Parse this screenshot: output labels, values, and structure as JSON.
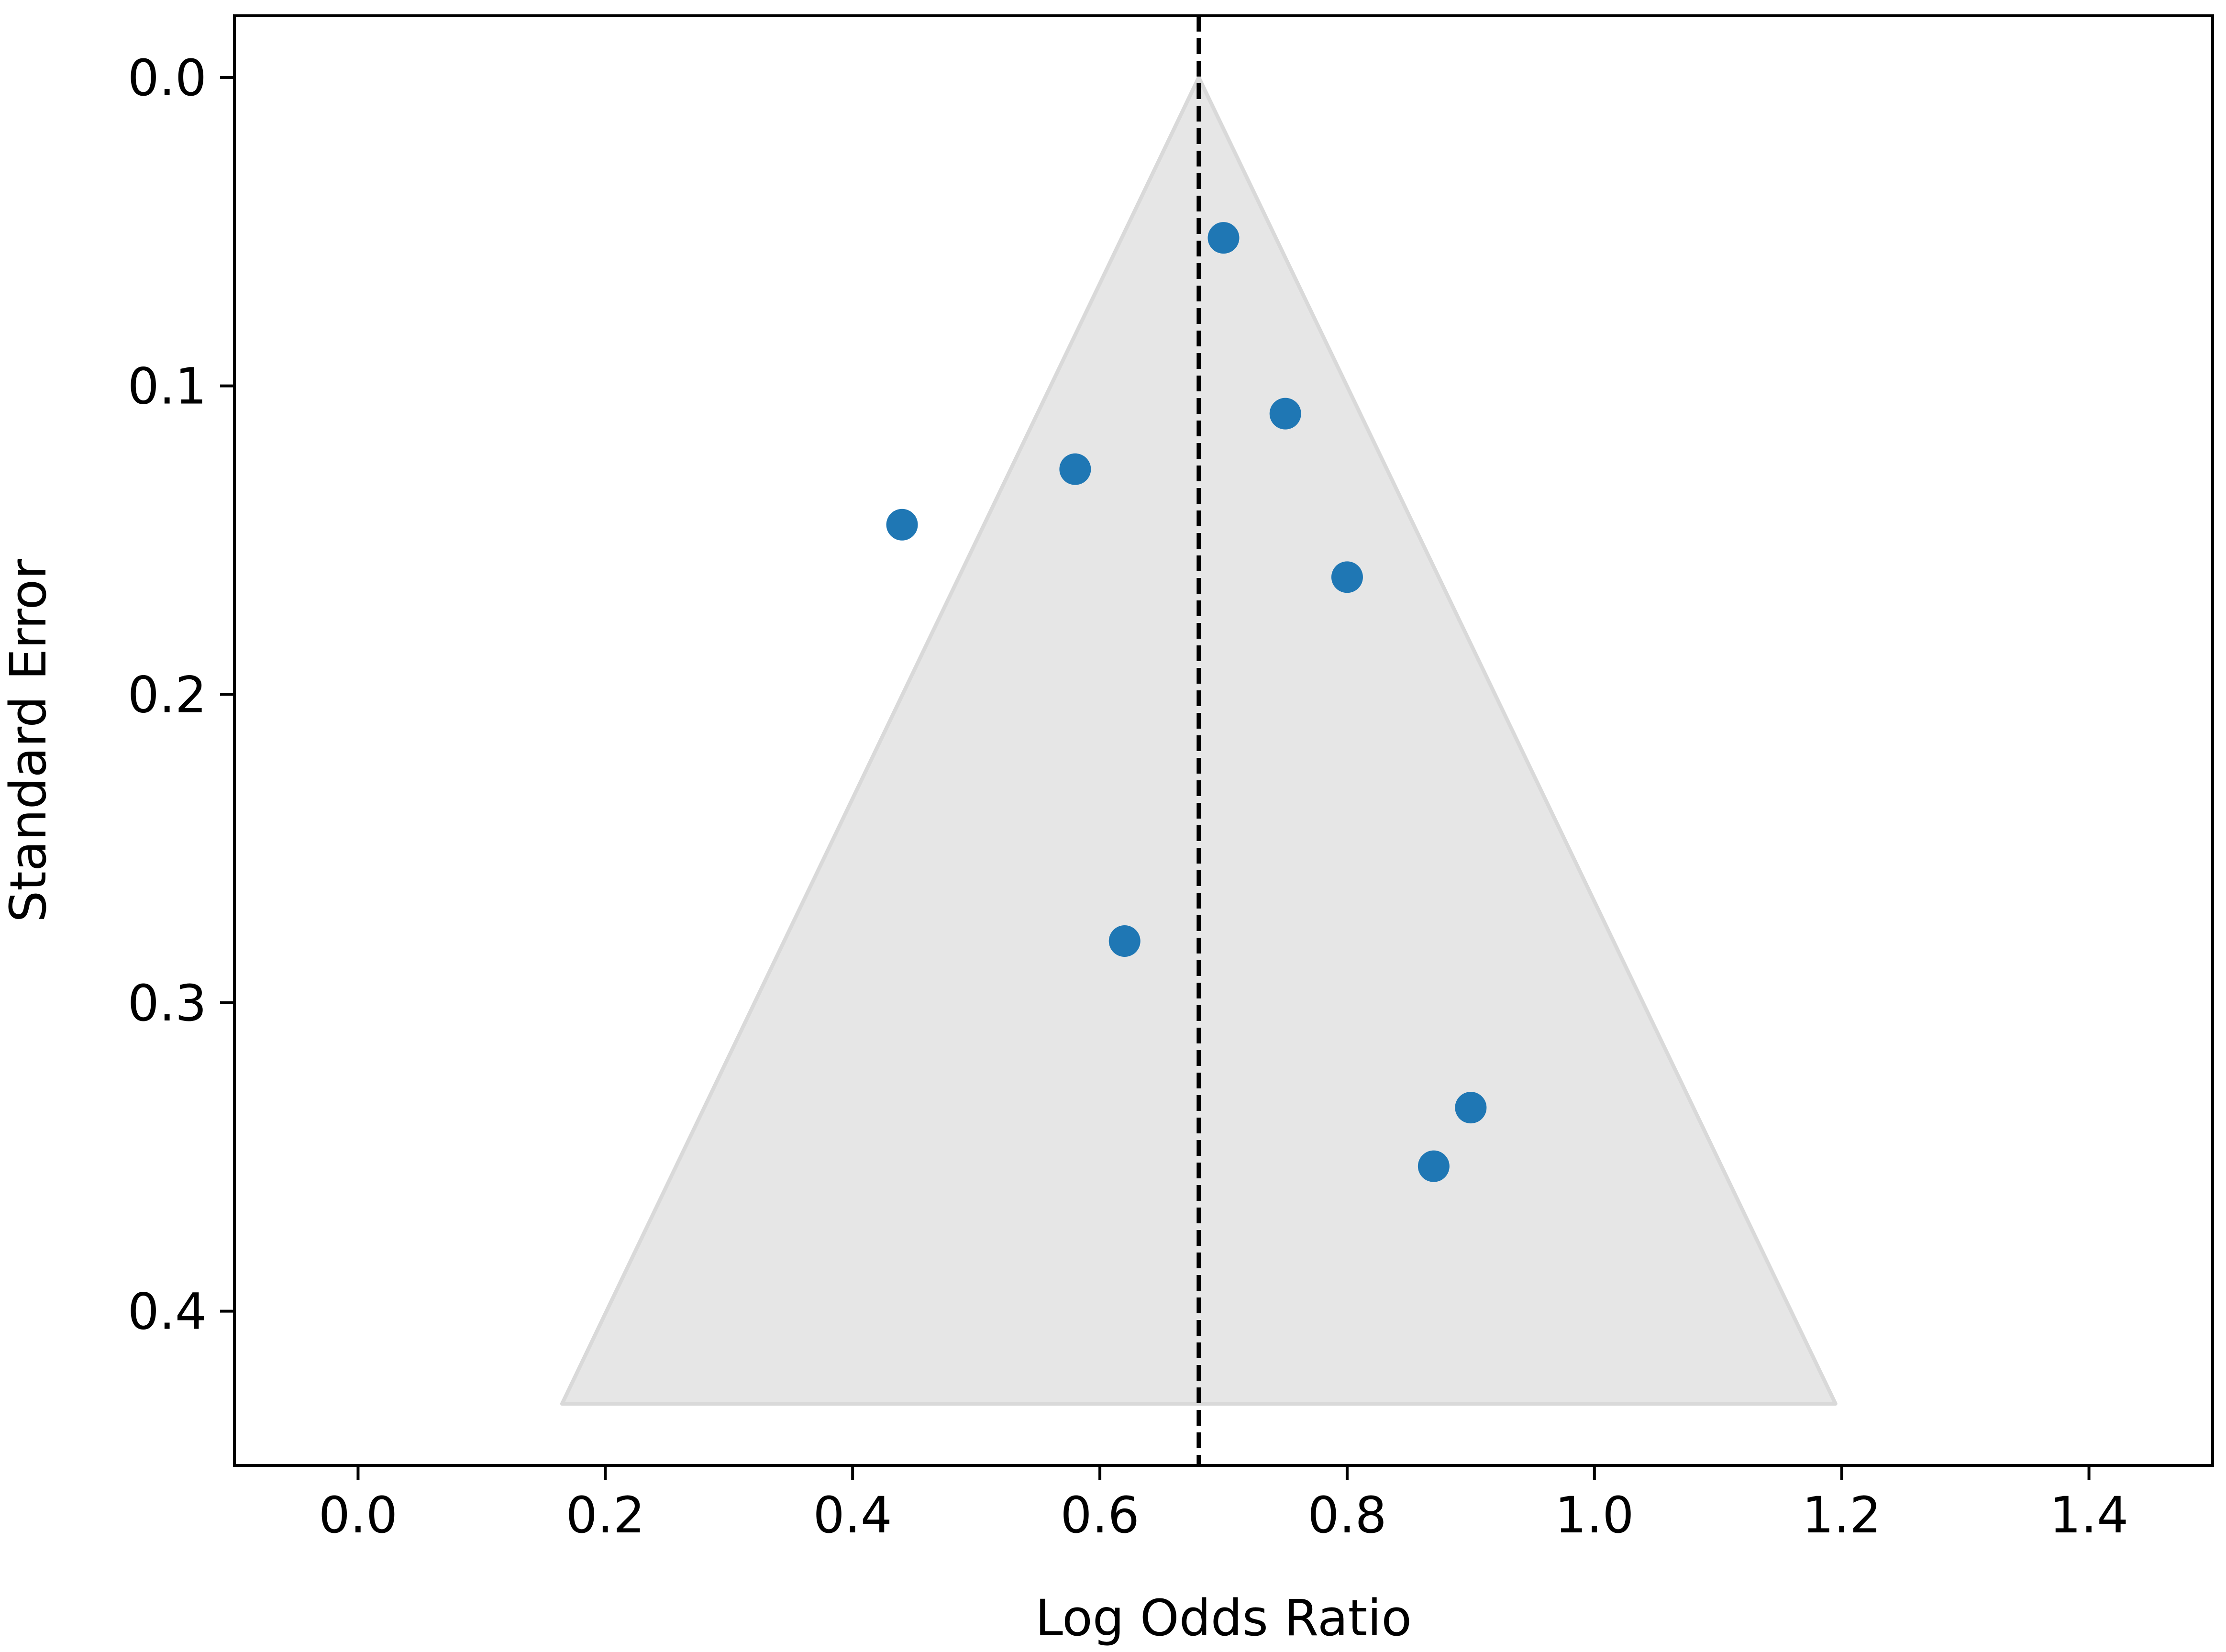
{
  "chart_data": {
    "type": "scatter",
    "title": "",
    "xlabel": "Log Odds Ratio",
    "ylabel": "Standard Error",
    "xlim": [
      -0.1,
      1.5
    ],
    "ylim": [
      0.45,
      -0.02
    ],
    "y_inverted": true,
    "grid": false,
    "x_ticks": [
      0.0,
      0.2,
      0.4,
      0.6,
      0.8,
      1.0,
      1.2,
      1.4
    ],
    "x_tick_labels": [
      "0.0",
      "0.2",
      "0.4",
      "0.6",
      "0.8",
      "1.0",
      "1.2",
      "1.4"
    ],
    "y_ticks": [
      0.0,
      0.1,
      0.2,
      0.3,
      0.4
    ],
    "y_tick_labels": [
      "0.0",
      "0.1",
      "0.2",
      "0.3",
      "0.4"
    ],
    "pooled_estimate": 0.68,
    "funnel": {
      "apex": [
        0.68,
        0.0
      ],
      "base_left": [
        0.165,
        0.43
      ],
      "base_right": [
        1.195,
        0.43
      ],
      "fill_color": "#e6e6e6",
      "edge_color": "#d9d9d9"
    },
    "points": [
      {
        "x": 0.7,
        "y": 0.052
      },
      {
        "x": 0.75,
        "y": 0.109
      },
      {
        "x": 0.58,
        "y": 0.127
      },
      {
        "x": 0.44,
        "y": 0.145
      },
      {
        "x": 0.8,
        "y": 0.162
      },
      {
        "x": 0.62,
        "y": 0.28
      },
      {
        "x": 0.9,
        "y": 0.334
      },
      {
        "x": 0.87,
        "y": 0.353
      }
    ],
    "point_color": "#1f77b4",
    "reference_line_color": "#000000"
  }
}
